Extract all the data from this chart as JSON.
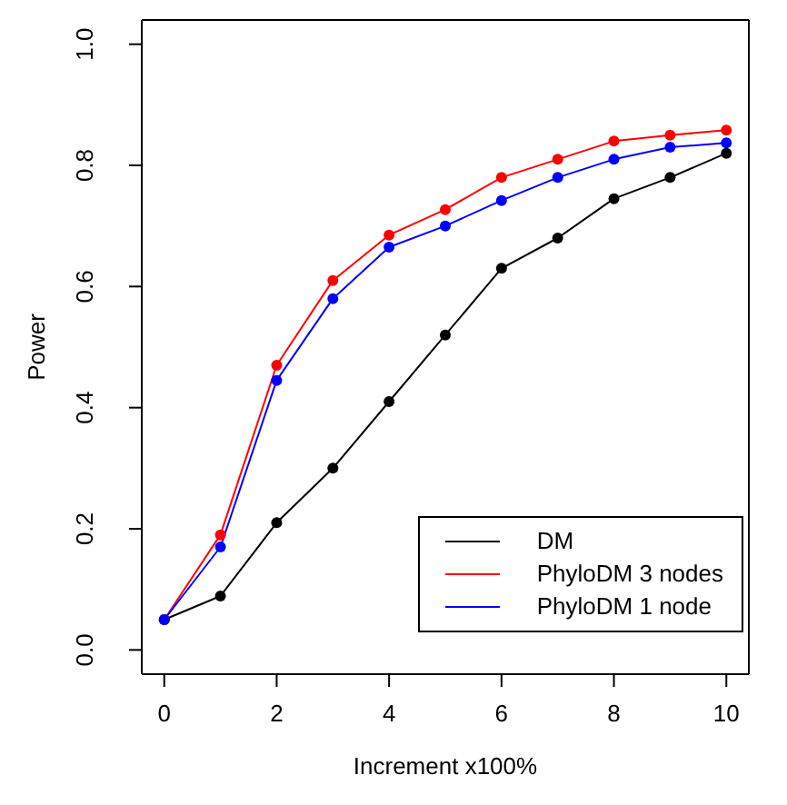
{
  "chart_data": {
    "type": "line",
    "xlabel": "Increment x100%",
    "ylabel": "Power",
    "x": [
      0,
      1,
      2,
      3,
      4,
      5,
      6,
      7,
      8,
      9,
      10
    ],
    "series": [
      {
        "name": "DM",
        "color": "#000000",
        "values": [
          0.05,
          0.089,
          0.21,
          0.3,
          0.41,
          0.52,
          0.63,
          0.68,
          0.745,
          0.78,
          0.82
        ]
      },
      {
        "name": "PhyloDM 3 nodes",
        "color": "#ff0000",
        "values": [
          0.05,
          0.19,
          0.47,
          0.61,
          0.685,
          0.727,
          0.78,
          0.81,
          0.84,
          0.85,
          0.858
        ]
      },
      {
        "name": "PhyloDM 1 node",
        "color": "#0000ff",
        "values": [
          0.05,
          0.17,
          0.445,
          0.58,
          0.665,
          0.7,
          0.742,
          0.78,
          0.81,
          0.83,
          0.837
        ]
      }
    ],
    "xlim": [
      -0.4,
      10.4
    ],
    "xticks": [
      0,
      2,
      4,
      6,
      8,
      10
    ],
    "ylim": [
      -0.04,
      1.04
    ],
    "yticks": [
      {
        "value": 0,
        "label": "0.0"
      },
      0.2,
      0.4,
      0.6,
      0.8,
      {
        "value": 1,
        "label": "1.0"
      }
    ],
    "grid": false,
    "legend": "bottom right",
    "marker": "circle",
    "line_style": "solid"
  }
}
